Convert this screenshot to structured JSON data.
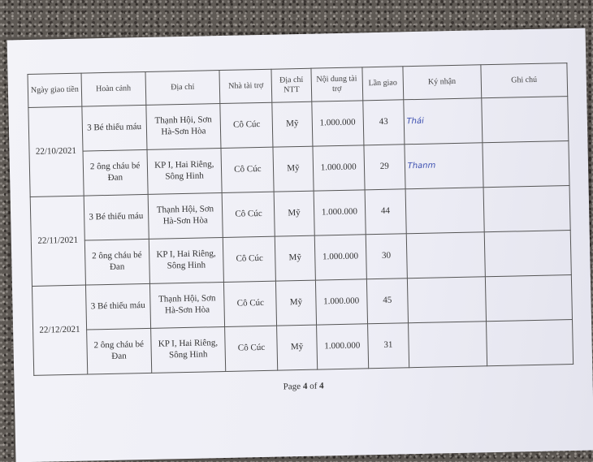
{
  "table": {
    "headers": [
      "Ngày giao tiền",
      "Hoàn cảnh",
      "Địa chỉ",
      "Nhà tài trợ",
      "Địa chỉ NTT",
      "Nội dung tài trợ",
      "Lần giao",
      "Ký nhận",
      "Ghi chú"
    ],
    "groups": [
      {
        "date": "22/10/2021",
        "rows": [
          {
            "situation": "3 Bé thiếu máu",
            "address": "Thạnh Hội, Sơn Hà-Sơn Hòa",
            "donor": "Cô Cúc",
            "donor_address": "Mỹ",
            "content": "1.000.000",
            "delivery": "43",
            "signature": "Thái"
          },
          {
            "situation": "2 ông cháu bé Đan",
            "address": "KP I, Hai Riêng, Sông Hinh",
            "donor": "Cô Cúc",
            "donor_address": "Mỹ",
            "content": "1.000.000",
            "delivery": "29",
            "signature": "Thanm"
          }
        ]
      },
      {
        "date": "22/11/2021",
        "rows": [
          {
            "situation": "3 Bé thiếu máu",
            "address": "Thạnh Hội, Sơn Hà-Sơn Hòa",
            "donor": "Cô Cúc",
            "donor_address": "Mỹ",
            "content": "1.000.000",
            "delivery": "44"
          },
          {
            "situation": "2 ông cháu bé Đan",
            "address": "KP I, Hai Riêng, Sông Hinh",
            "donor": "Cô Cúc",
            "donor_address": "Mỹ",
            "content": "1.000.000",
            "delivery": "30"
          }
        ]
      },
      {
        "date": "22/12/2021",
        "rows": [
          {
            "situation": "3 Bé thiếu máu",
            "address": "Thạnh Hội, Sơn Hà-Sơn Hòa",
            "donor": "Cô Cúc",
            "donor_address": "Mỹ",
            "content": "1.000.000",
            "delivery": "45"
          },
          {
            "situation": "2 ông cháu bé Đan",
            "address": "KP I, Hai Riêng, Sông Hinh",
            "donor": "Cô Cúc",
            "donor_address": "Mỹ",
            "content": "1.000.000",
            "delivery": "31"
          }
        ]
      }
    ]
  },
  "footer": {
    "prefix": "Page",
    "page": "4",
    "of": "of",
    "total": "4"
  }
}
